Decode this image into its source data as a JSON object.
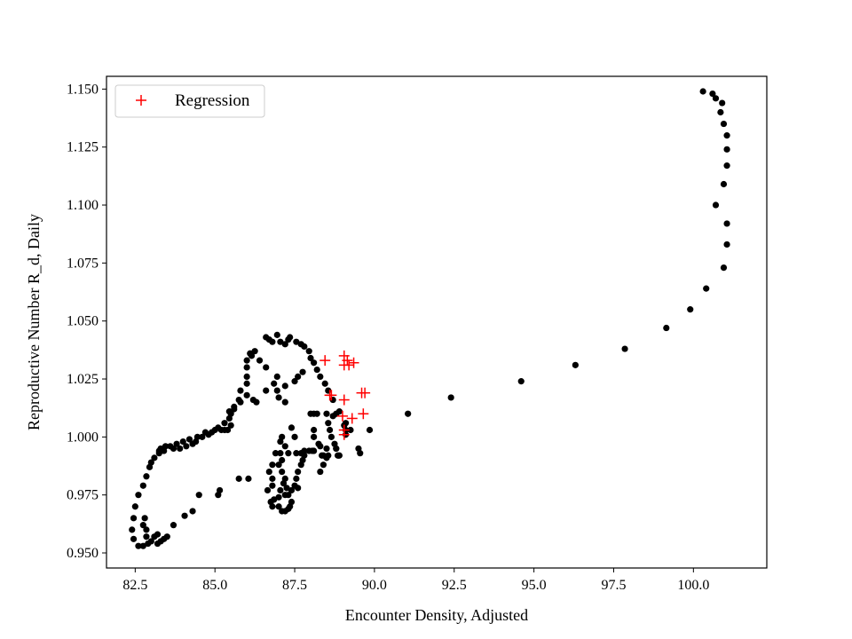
{
  "chart_data": {
    "type": "scatter",
    "title": "",
    "xlabel": "Encounter Density, Adjusted",
    "ylabel": "Reproductive Number R_d, Daily",
    "xlim": [
      81.6,
      102.3
    ],
    "ylim": [
      0.9435,
      1.1555
    ],
    "xticks": [
      82.5,
      85.0,
      87.5,
      90.0,
      92.5,
      95.0,
      97.5,
      100.0
    ],
    "yticks": [
      0.95,
      0.975,
      1.0,
      1.025,
      1.05,
      1.075,
      1.1,
      1.125,
      1.15
    ],
    "grid": false,
    "legend": {
      "position": "upper-left",
      "entries": [
        "Regression"
      ]
    },
    "colors": {
      "observed": "#000000",
      "regression": "#ff0000"
    },
    "series": [
      {
        "marker": "dot",
        "color": "#000000",
        "points": [
          [
            100.3,
            1.149
          ],
          [
            100.6,
            1.148
          ],
          [
            100.7,
            1.146
          ],
          [
            100.9,
            1.144
          ],
          [
            100.85,
            1.14
          ],
          [
            100.95,
            1.135
          ],
          [
            101.05,
            1.13
          ],
          [
            101.05,
            1.124
          ],
          [
            101.05,
            1.117
          ],
          [
            100.95,
            1.109
          ],
          [
            100.7,
            1.1
          ],
          [
            101.05,
            1.092
          ],
          [
            101.05,
            1.083
          ],
          [
            100.95,
            1.073
          ],
          [
            100.4,
            1.064
          ],
          [
            99.9,
            1.055
          ],
          [
            99.15,
            1.047
          ],
          [
            97.85,
            1.038
          ],
          [
            96.3,
            1.031
          ],
          [
            94.6,
            1.024
          ],
          [
            92.4,
            1.017
          ],
          [
            91.05,
            1.01
          ],
          [
            89.85,
            1.003
          ],
          [
            89.5,
            0.995
          ],
          [
            89.55,
            0.993
          ],
          [
            89.1,
            1.001
          ],
          [
            89.1,
            1.003
          ],
          [
            89.05,
            1.005
          ],
          [
            88.1,
            1.01
          ],
          [
            88.2,
            1.01
          ],
          [
            88.5,
            1.01
          ],
          [
            88.8,
            1.01
          ],
          [
            88.7,
            1.009
          ],
          [
            88.55,
            1.006
          ],
          [
            88.6,
            1.003
          ],
          [
            88.65,
            1.0
          ],
          [
            88.75,
            0.997
          ],
          [
            88.8,
            0.995
          ],
          [
            88.55,
            0.992
          ],
          [
            88.4,
            0.988
          ],
          [
            88.3,
            0.985
          ],
          [
            88.25,
            0.997
          ],
          [
            88.1,
            1.003
          ],
          [
            88.0,
            1.01
          ],
          [
            88.1,
            1.0
          ],
          [
            88.3,
            0.996
          ],
          [
            88.5,
            0.995
          ],
          [
            88.8,
            0.995
          ],
          [
            88.9,
            0.992
          ],
          [
            88.5,
            0.991
          ],
          [
            88.35,
            0.992
          ],
          [
            88.1,
            0.994
          ],
          [
            87.95,
            0.994
          ],
          [
            87.8,
            0.992
          ],
          [
            87.75,
            0.99
          ],
          [
            87.7,
            0.988
          ],
          [
            87.6,
            0.985
          ],
          [
            87.55,
            0.982
          ],
          [
            87.5,
            0.979
          ],
          [
            87.6,
            0.978
          ],
          [
            87.4,
            0.977
          ],
          [
            87.2,
            0.975
          ],
          [
            87.05,
            0.977
          ],
          [
            87.0,
            0.974
          ],
          [
            86.85,
            0.973
          ],
          [
            86.75,
            0.972
          ],
          [
            86.8,
            0.97
          ],
          [
            87.0,
            0.97
          ],
          [
            87.1,
            0.968
          ],
          [
            87.2,
            0.968
          ],
          [
            87.3,
            0.969
          ],
          [
            87.35,
            0.97
          ],
          [
            87.4,
            0.972
          ],
          [
            87.3,
            0.975
          ],
          [
            87.25,
            0.978
          ],
          [
            87.15,
            0.98
          ],
          [
            87.2,
            0.982
          ],
          [
            87.1,
            0.985
          ],
          [
            87.0,
            0.988
          ],
          [
            87.1,
            0.99
          ],
          [
            87.05,
            0.993
          ],
          [
            86.9,
            0.993
          ],
          [
            86.8,
            0.988
          ],
          [
            86.7,
            0.985
          ],
          [
            86.8,
            0.982
          ],
          [
            86.8,
            0.979
          ],
          [
            86.65,
            0.977
          ],
          [
            87.2,
            0.996
          ],
          [
            87.5,
            1.0
          ],
          [
            87.4,
            1.004
          ],
          [
            87.1,
            1.0
          ],
          [
            87.05,
            0.998
          ],
          [
            87.3,
            0.993
          ],
          [
            87.55,
            0.993
          ],
          [
            87.7,
            0.993
          ],
          [
            87.8,
            0.994
          ],
          [
            88.05,
            0.994
          ],
          [
            88.4,
            0.992
          ],
          [
            88.85,
            0.992
          ],
          [
            87.2,
            1.015
          ],
          [
            87.0,
            1.017
          ],
          [
            86.95,
            1.02
          ],
          [
            86.85,
            1.023
          ],
          [
            86.6,
            1.02
          ],
          [
            86.3,
            1.015
          ],
          [
            86.2,
            1.016
          ],
          [
            86.0,
            1.018
          ],
          [
            85.8,
            1.015
          ],
          [
            85.6,
            1.012
          ],
          [
            85.5,
            1.01
          ],
          [
            85.45,
            1.008
          ],
          [
            85.5,
            1.005
          ],
          [
            85.4,
            1.003
          ],
          [
            85.3,
            1.003
          ],
          [
            85.2,
            1.003
          ],
          [
            85.0,
            1.003
          ],
          [
            84.9,
            1.002
          ],
          [
            84.8,
            1.001
          ],
          [
            84.6,
            1.0
          ],
          [
            84.4,
            0.998
          ],
          [
            84.3,
            0.997
          ],
          [
            84.1,
            0.996
          ],
          [
            83.9,
            0.995
          ],
          [
            83.7,
            0.995
          ],
          [
            83.4,
            0.994
          ],
          [
            83.25,
            0.994
          ],
          [
            83.1,
            0.991
          ],
          [
            83.0,
            0.989
          ],
          [
            82.95,
            0.987
          ],
          [
            82.85,
            0.983
          ],
          [
            82.75,
            0.979
          ],
          [
            82.6,
            0.975
          ],
          [
            82.5,
            0.97
          ],
          [
            82.45,
            0.965
          ],
          [
            82.4,
            0.96
          ],
          [
            82.45,
            0.956
          ],
          [
            82.6,
            0.953
          ],
          [
            82.75,
            0.953
          ],
          [
            82.9,
            0.954
          ],
          [
            83.1,
            0.957
          ],
          [
            83.2,
            0.958
          ],
          [
            83.5,
            0.957
          ],
          [
            83.7,
            0.962
          ],
          [
            84.05,
            0.966
          ],
          [
            84.3,
            0.968
          ],
          [
            84.5,
            0.975
          ],
          [
            85.1,
            0.975
          ],
          [
            85.15,
            0.977
          ],
          [
            85.75,
            0.982
          ],
          [
            86.05,
            0.982
          ],
          [
            83.0,
            0.955
          ],
          [
            82.85,
            0.957
          ],
          [
            83.2,
            0.954
          ],
          [
            83.3,
            0.955
          ],
          [
            83.4,
            0.956
          ],
          [
            82.85,
            0.96
          ],
          [
            82.75,
            0.962
          ],
          [
            82.8,
            0.965
          ],
          [
            83.25,
            0.993
          ],
          [
            83.3,
            0.995
          ],
          [
            83.45,
            0.996
          ],
          [
            83.6,
            0.996
          ],
          [
            83.8,
            0.997
          ],
          [
            84.0,
            0.998
          ],
          [
            84.2,
            0.999
          ],
          [
            84.45,
            1.0
          ],
          [
            84.7,
            1.002
          ],
          [
            85.1,
            1.004
          ],
          [
            85.3,
            1.006
          ],
          [
            85.45,
            1.011
          ],
          [
            85.6,
            1.013
          ],
          [
            85.75,
            1.016
          ],
          [
            85.8,
            1.02
          ],
          [
            86.0,
            1.023
          ],
          [
            86.0,
            1.026
          ],
          [
            86.0,
            1.03
          ],
          [
            86.0,
            1.033
          ],
          [
            86.15,
            1.035
          ],
          [
            86.25,
            1.037
          ],
          [
            86.6,
            1.043
          ],
          [
            86.7,
            1.042
          ],
          [
            86.8,
            1.041
          ],
          [
            86.95,
            1.044
          ],
          [
            87.05,
            1.041
          ],
          [
            87.2,
            1.04
          ],
          [
            87.3,
            1.042
          ],
          [
            87.35,
            1.043
          ],
          [
            87.55,
            1.041
          ],
          [
            87.7,
            1.04
          ],
          [
            87.8,
            1.039
          ],
          [
            87.95,
            1.037
          ],
          [
            88.0,
            1.034
          ],
          [
            88.1,
            1.032
          ],
          [
            88.2,
            1.029
          ],
          [
            88.3,
            1.026
          ],
          [
            88.45,
            1.023
          ],
          [
            88.55,
            1.02
          ],
          [
            88.7,
            1.016
          ],
          [
            88.9,
            1.011
          ],
          [
            89.1,
            1.006
          ],
          [
            89.25,
            1.003
          ],
          [
            87.75,
            1.028
          ],
          [
            87.6,
            1.026
          ],
          [
            87.5,
            1.024
          ],
          [
            87.2,
            1.022
          ],
          [
            86.95,
            1.026
          ],
          [
            86.6,
            1.03
          ],
          [
            86.4,
            1.033
          ],
          [
            86.1,
            1.036
          ]
        ]
      },
      {
        "name": "Regression",
        "marker": "plus",
        "color": "#ff0000",
        "points": [
          [
            88.45,
            1.033
          ],
          [
            89.05,
            1.035
          ],
          [
            89.15,
            1.033
          ],
          [
            89.35,
            1.032
          ],
          [
            89.05,
            1.031
          ],
          [
            89.2,
            1.031
          ],
          [
            88.6,
            1.018
          ],
          [
            88.65,
            1.018
          ],
          [
            89.6,
            1.019
          ],
          [
            89.7,
            1.019
          ],
          [
            89.05,
            1.016
          ],
          [
            89.65,
            1.01
          ],
          [
            89.0,
            1.009
          ],
          [
            89.3,
            1.008
          ],
          [
            89.05,
            1.003
          ],
          [
            89.05,
            1.001
          ]
        ]
      }
    ]
  }
}
